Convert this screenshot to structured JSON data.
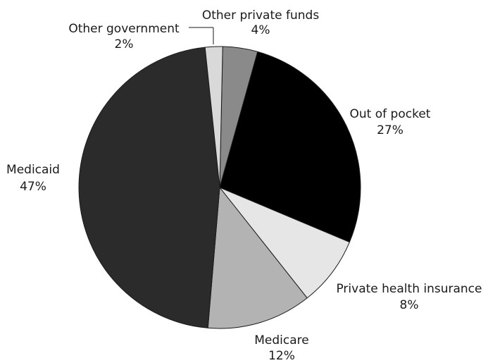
{
  "chart_data": {
    "type": "pie",
    "title": "",
    "slices": [
      {
        "label": "Other private funds",
        "value": 4,
        "value_label": "4%",
        "color": "#8a8a8a"
      },
      {
        "label": "Out of pocket",
        "value": 27,
        "value_label": "27%",
        "color": "#000000"
      },
      {
        "label": "Private health insurance",
        "value": 8,
        "value_label": "8%",
        "color": "#e6e6e6"
      },
      {
        "label": "Medicare",
        "value": 12,
        "value_label": "12%",
        "color": "#b3b3b3"
      },
      {
        "label": "Medicaid",
        "value": 47,
        "value_label": "47%",
        "color": "#2b2b2b"
      },
      {
        "label": "Other government",
        "value": 2,
        "value_label": "2%",
        "color": "#d9d9d9"
      }
    ]
  }
}
